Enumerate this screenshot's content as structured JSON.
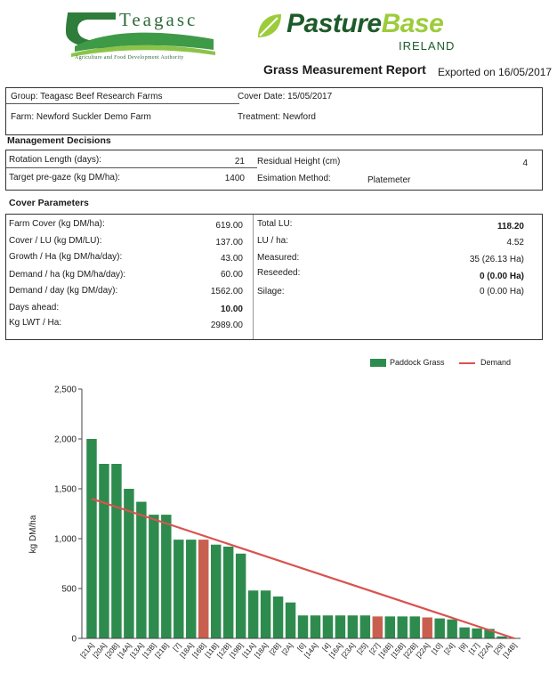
{
  "header": {
    "teagasc_name": "Teagasc",
    "teagasc_tagline": "Agriculture and Food Development Authority",
    "pasturebase_part1": "Pasture",
    "pasturebase_part2": "Base",
    "pasturebase_region": "IRELAND",
    "report_title": "Grass Measurement Report",
    "exported": "Exported on 16/05/2017"
  },
  "info": {
    "group": "Group: Teagasc Beef Research Farms",
    "cover_date": "Cover Date: 15/05/2017",
    "farm": "Farm: Newford Suckler Demo Farm",
    "treatment": "Treatment: Newford"
  },
  "management": {
    "title": "Management Decisions",
    "rotation_label": "Rotation Length (days):",
    "rotation_value": "21",
    "residual_label": "Residual Height (cm)",
    "residual_value": "4",
    "target_label": "Target pre-gaze (kg DM/ha):",
    "target_value": "1400",
    "method_label": "Esimation Method:",
    "method_value": "Platemeter"
  },
  "cover": {
    "title": "Cover Parameters",
    "left": [
      {
        "label": "Farm Cover (kg DM/ha):",
        "value": "619.00"
      },
      {
        "label": "Cover / LU (kg DM/LU):",
        "value": "137.00"
      },
      {
        "label": "Growth / Ha (kg DM/ha/day):",
        "value": "43.00"
      },
      {
        "label": "Demand / ha (kg DM/ha/day):",
        "value": "60.00"
      },
      {
        "label": "Demand / day (kg DM/day):",
        "value": "1562.00"
      },
      {
        "label": "Days ahead:",
        "value": "10.00"
      },
      {
        "label": "Kg LWT / Ha:",
        "value": "2989.00"
      }
    ],
    "right": [
      {
        "label": "Total LU:",
        "value": "118.20"
      },
      {
        "label": "LU / ha:",
        "value": "4.52"
      },
      {
        "label": "Measured:",
        "value": "35 (26.13 Ha)"
      },
      {
        "label": "Reseeded:",
        "value": "0 (0.00 Ha)"
      },
      {
        "label": "Silage:",
        "value": "0 (0.00 Ha)"
      }
    ]
  },
  "chart_data": {
    "type": "bar",
    "ylabel": "kg DM/ha",
    "ylim": [
      0,
      2500
    ],
    "yticks": [
      0,
      500,
      1000,
      1500,
      2000,
      2500
    ],
    "ytick_labels": [
      "0",
      "500",
      "1,000",
      "1,500",
      "2,000",
      "2,500"
    ],
    "legend_position": "top-right",
    "legend": [
      "Paddock Grass",
      "Demand"
    ],
    "colors": {
      "grass": "#2e8b4e",
      "highlight": "#c9604f",
      "demand": "#d9534f"
    },
    "categories": [
      "[21A]",
      "[20A]",
      "[20B]",
      "[14A]",
      "[13A]",
      "[13B]",
      "[21B]",
      "[7]",
      "[18A]",
      "[16B]",
      "[11B]",
      "[12B]",
      "[19B]",
      "[11A]",
      "[18A]",
      "[2B]",
      "[2A]",
      "[6]",
      "[14A]",
      "[4]",
      "[16A]",
      "[23A]",
      "[25]",
      "[27]",
      "[16B]",
      "[15B]",
      "[22B]",
      "[22A]",
      "[10]",
      "[24]",
      "[9]",
      "[17]",
      "[22A]",
      "[29]",
      "[14B]"
    ],
    "values": [
      2000,
      1750,
      1750,
      1500,
      1370,
      1240,
      1240,
      990,
      990,
      990,
      940,
      920,
      850,
      480,
      480,
      420,
      360,
      230,
      230,
      230,
      230,
      230,
      230,
      220,
      220,
      220,
      220,
      210,
      200,
      190,
      110,
      100,
      95,
      20,
      0
    ],
    "highlighted": [
      9,
      23,
      27
    ],
    "demand_line": {
      "x": [
        0,
        34
      ],
      "y": [
        1400,
        0
      ]
    }
  }
}
